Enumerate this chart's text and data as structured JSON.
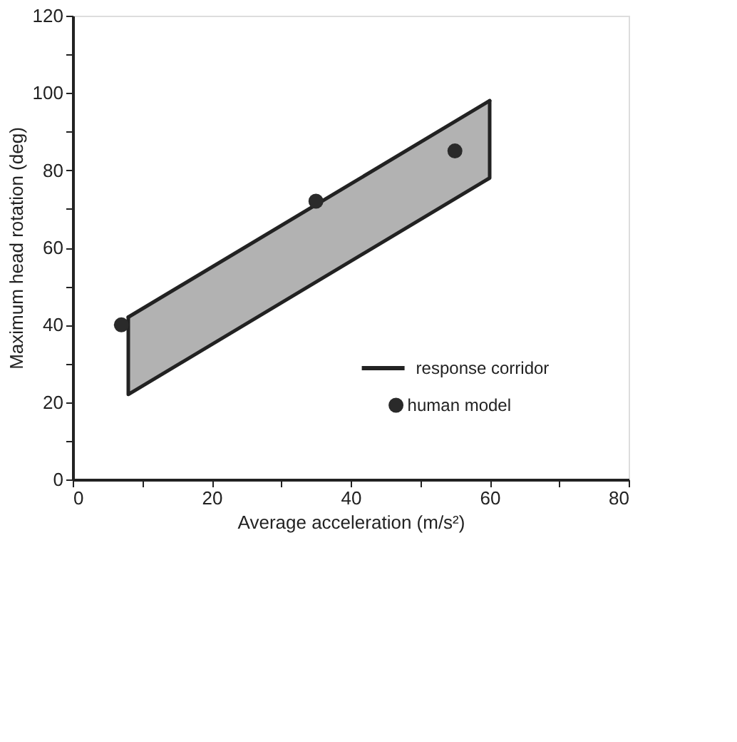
{
  "chart_data": {
    "type": "scatter",
    "xlabel": "Average acceleration  (m/s²)",
    "ylabel": "Maximum head rotation (deg)",
    "series": [
      {
        "name": "response corridor",
        "type": "line",
        "color": "#222222",
        "x": [
          8,
          60
        ],
        "values": [
          42,
          98
        ],
        "lower": [
          22,
          78
        ],
        "upper": [
          42,
          98
        ]
      },
      {
        "type": "line",
        "color": "#222222",
        "x": [
          8,
          8,
          60,
          60
        ],
        "values": [
          42,
          22,
          78,
          98
        ]
      },
      {
        "name": "human model",
        "marker": "circle",
        "color": "#2a2a2a",
        "x": [
          7,
          35,
          55
        ],
        "values": [
          40,
          72,
          85
        ]
      }
    ],
    "xlim": [
      0,
      80
    ],
    "xticks": [
      0,
      {
        "value": 10,
        "label": null
      },
      20,
      {
        "value": 30,
        "label": null
      },
      40,
      {
        "value": 50,
        "label": null
      },
      60,
      {
        "value": 70,
        "label": null
      },
      80
    ],
    "ylim": [
      0,
      120
    ],
    "yticks": [
      0,
      {
        "value": 10,
        "label": null
      },
      20,
      {
        "value": 30,
        "label": null
      },
      40,
      {
        "value": 50,
        "label": null
      },
      60,
      {
        "value": 70,
        "label": null
      },
      80,
      {
        "value": 90,
        "label": null
      },
      100,
      {
        "value": 110,
        "label": null
      },
      120
    ],
    "grid": false,
    "legend": "bottom right"
  }
}
